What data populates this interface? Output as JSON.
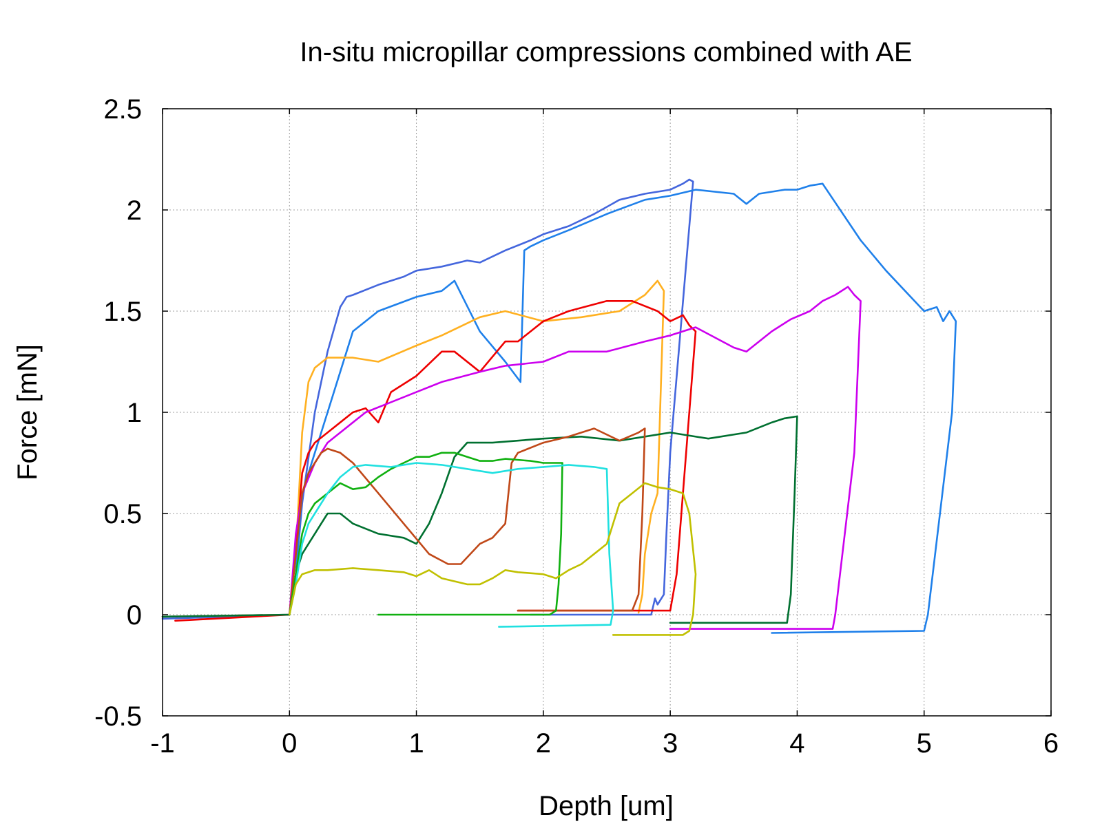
{
  "chart_data": {
    "type": "line",
    "title": "In-situ micropillar compressions combined with AE",
    "xlabel": "Depth [um]",
    "ylabel": "Force [mN]",
    "xlim": [
      -1,
      6
    ],
    "ylim": [
      -0.5,
      2.5
    ],
    "xticks": [
      -1,
      0,
      1,
      2,
      3,
      4,
      5,
      6
    ],
    "yticks": [
      -0.5,
      0,
      0.5,
      1,
      1.5,
      2,
      2.5
    ],
    "xtick_labels": [
      "-1",
      "0",
      "1",
      "2",
      "3",
      "4",
      "5",
      "6"
    ],
    "ytick_labels": [
      "-0.5",
      "0",
      "0.5",
      "1",
      "1.5",
      "2",
      "2.5"
    ],
    "grid": true,
    "series": [
      {
        "name": "royal-blue",
        "color": "#4466dd",
        "x": [
          -1,
          0,
          0.05,
          0.1,
          0.2,
          0.3,
          0.4,
          0.45,
          0.5,
          0.7,
          0.9,
          1.0,
          1.2,
          1.4,
          1.5,
          1.7,
          1.9,
          2.0,
          2.2,
          2.4,
          2.6,
          2.8,
          3.0,
          3.1,
          3.15,
          3.18,
          3.0,
          2.97,
          2.95,
          2.9,
          2.88,
          2.85,
          1.9
        ],
        "y": [
          -0.02,
          0.0,
          0.2,
          0.55,
          1.0,
          1.3,
          1.52,
          1.57,
          1.58,
          1.63,
          1.67,
          1.7,
          1.72,
          1.75,
          1.74,
          1.8,
          1.85,
          1.88,
          1.92,
          1.98,
          2.05,
          2.08,
          2.1,
          2.13,
          2.15,
          2.14,
          0.8,
          0.4,
          0.1,
          0.05,
          0.08,
          0.0,
          0.0
        ]
      },
      {
        "name": "azure",
        "color": "#1f80ea",
        "x": [
          -1,
          0,
          0.05,
          0.1,
          0.2,
          0.3,
          0.4,
          0.5,
          0.7,
          1.0,
          1.2,
          1.3,
          1.5,
          1.7,
          1.82,
          1.85,
          1.9,
          2.0,
          2.2,
          2.5,
          2.8,
          3.0,
          3.2,
          3.5,
          3.6,
          3.7,
          3.9,
          4.0,
          4.1,
          4.2,
          4.5,
          4.7,
          5.0,
          5.1,
          5.15,
          5.2,
          5.25,
          5.22,
          5.03,
          5.0,
          3.8
        ],
        "y": [
          -0.01,
          0.0,
          0.2,
          0.6,
          0.8,
          1.0,
          1.2,
          1.4,
          1.5,
          1.57,
          1.6,
          1.65,
          1.4,
          1.25,
          1.15,
          1.8,
          1.82,
          1.85,
          1.9,
          1.98,
          2.05,
          2.07,
          2.1,
          2.08,
          2.03,
          2.08,
          2.1,
          2.1,
          2.12,
          2.13,
          1.85,
          1.7,
          1.5,
          1.52,
          1.45,
          1.5,
          1.45,
          1.0,
          0.0,
          -0.08,
          -0.09
        ]
      },
      {
        "name": "orange",
        "color": "#ffb020",
        "x": [
          -1,
          0,
          0.05,
          0.1,
          0.15,
          0.2,
          0.3,
          0.5,
          0.7,
          1.0,
          1.2,
          1.5,
          1.7,
          2.0,
          2.3,
          2.6,
          2.8,
          2.9,
          2.95,
          2.93,
          2.9,
          2.85,
          2.8,
          2.78,
          2.75
        ],
        "y": [
          -0.01,
          0.0,
          0.3,
          0.9,
          1.15,
          1.22,
          1.27,
          1.27,
          1.25,
          1.33,
          1.38,
          1.47,
          1.5,
          1.45,
          1.47,
          1.5,
          1.58,
          1.65,
          1.6,
          1.2,
          0.6,
          0.5,
          0.3,
          0.1,
          0.01
        ]
      },
      {
        "name": "red",
        "color": "#ee0000",
        "x": [
          -0.9,
          0,
          0.05,
          0.1,
          0.15,
          0.2,
          0.3,
          0.4,
          0.5,
          0.6,
          0.7,
          0.8,
          1.0,
          1.2,
          1.3,
          1.5,
          1.7,
          1.8,
          2.0,
          2.2,
          2.5,
          2.7,
          2.9,
          3.0,
          3.1,
          3.15,
          3.2,
          3.1,
          3.05,
          3.0,
          2.8,
          1.8
        ],
        "y": [
          -0.03,
          0.0,
          0.3,
          0.7,
          0.8,
          0.85,
          0.9,
          0.95,
          1.0,
          1.02,
          0.95,
          1.1,
          1.18,
          1.3,
          1.3,
          1.2,
          1.35,
          1.35,
          1.45,
          1.5,
          1.55,
          1.55,
          1.5,
          1.45,
          1.48,
          1.43,
          1.4,
          0.6,
          0.2,
          0.02,
          0.02,
          0.02
        ]
      },
      {
        "name": "violet",
        "color": "#cc00ee",
        "x": [
          0,
          0.05,
          0.1,
          0.2,
          0.3,
          0.5,
          0.6,
          0.8,
          1.0,
          1.2,
          1.5,
          1.7,
          2.0,
          2.2,
          2.5,
          2.8,
          3.0,
          3.2,
          3.5,
          3.6,
          3.8,
          3.95,
          4.1,
          4.2,
          4.3,
          4.35,
          4.4,
          4.45,
          4.5,
          4.45,
          4.3,
          4.28,
          3.0
        ],
        "y": [
          0.0,
          0.4,
          0.6,
          0.75,
          0.85,
          0.95,
          1.0,
          1.05,
          1.1,
          1.15,
          1.2,
          1.23,
          1.25,
          1.3,
          1.3,
          1.35,
          1.38,
          1.42,
          1.32,
          1.3,
          1.4,
          1.46,
          1.5,
          1.55,
          1.58,
          1.6,
          1.62,
          1.58,
          1.55,
          0.8,
          0.0,
          -0.07,
          -0.07
        ]
      },
      {
        "name": "dark-green",
        "color": "#007030",
        "x": [
          -1,
          0,
          0.05,
          0.1,
          0.15,
          0.2,
          0.3,
          0.4,
          0.5,
          0.7,
          0.9,
          1.0,
          1.1,
          1.2,
          1.3,
          1.4,
          1.6,
          2.0,
          2.3,
          2.6,
          2.8,
          3.0,
          3.3,
          3.6,
          3.8,
          3.9,
          4.0,
          3.98,
          3.95,
          3.92,
          3.0
        ],
        "y": [
          -0.01,
          0.0,
          0.2,
          0.3,
          0.35,
          0.4,
          0.5,
          0.5,
          0.45,
          0.4,
          0.38,
          0.35,
          0.45,
          0.6,
          0.78,
          0.85,
          0.85,
          0.87,
          0.88,
          0.86,
          0.88,
          0.9,
          0.87,
          0.9,
          0.95,
          0.97,
          0.98,
          0.6,
          0.1,
          -0.04,
          -0.04
        ]
      },
      {
        "name": "brown",
        "color": "#c04818",
        "x": [
          0,
          0.05,
          0.1,
          0.15,
          0.2,
          0.25,
          0.3,
          0.4,
          0.5,
          0.7,
          0.9,
          1.1,
          1.25,
          1.35,
          1.5,
          1.6,
          1.7,
          1.75,
          1.8,
          2.0,
          2.2,
          2.4,
          2.6,
          2.75,
          2.8,
          2.78,
          2.75,
          2.7,
          1.8
        ],
        "y": [
          0.0,
          0.3,
          0.6,
          0.7,
          0.75,
          0.8,
          0.82,
          0.8,
          0.75,
          0.6,
          0.45,
          0.3,
          0.25,
          0.25,
          0.35,
          0.38,
          0.45,
          0.75,
          0.8,
          0.85,
          0.88,
          0.92,
          0.86,
          0.9,
          0.92,
          0.5,
          0.1,
          0.02,
          0.02
        ]
      },
      {
        "name": "green",
        "color": "#10b010",
        "x": [
          0,
          0.05,
          0.1,
          0.15,
          0.2,
          0.3,
          0.4,
          0.5,
          0.6,
          0.7,
          0.8,
          0.9,
          1.0,
          1.1,
          1.2,
          1.3,
          1.4,
          1.5,
          1.6,
          1.7,
          1.9,
          2.0,
          2.1,
          2.15,
          2.14,
          2.12,
          2.1,
          2.05,
          0.7
        ],
        "y": [
          0.0,
          0.2,
          0.4,
          0.5,
          0.55,
          0.6,
          0.65,
          0.62,
          0.63,
          0.68,
          0.72,
          0.75,
          0.78,
          0.78,
          0.8,
          0.8,
          0.78,
          0.76,
          0.76,
          0.77,
          0.76,
          0.75,
          0.75,
          0.75,
          0.4,
          0.15,
          0.02,
          0.0,
          0.0
        ]
      },
      {
        "name": "cyan",
        "color": "#20e0e0",
        "x": [
          0,
          0.05,
          0.1,
          0.15,
          0.2,
          0.3,
          0.4,
          0.5,
          0.6,
          0.8,
          1.0,
          1.2,
          1.4,
          1.6,
          1.8,
          2.0,
          2.2,
          2.4,
          2.5,
          2.52,
          2.55,
          2.53,
          1.65
        ],
        "y": [
          0.0,
          0.15,
          0.35,
          0.45,
          0.5,
          0.6,
          0.68,
          0.73,
          0.74,
          0.73,
          0.75,
          0.74,
          0.72,
          0.7,
          0.72,
          0.73,
          0.74,
          0.73,
          0.72,
          0.3,
          0.02,
          -0.05,
          -0.06
        ]
      },
      {
        "name": "olive",
        "color": "#c0c000",
        "x": [
          0,
          0.05,
          0.1,
          0.2,
          0.3,
          0.5,
          0.7,
          0.9,
          1.0,
          1.1,
          1.2,
          1.4,
          1.5,
          1.6,
          1.7,
          1.8,
          2.0,
          2.1,
          2.2,
          2.3,
          2.4,
          2.5,
          2.6,
          2.7,
          2.8,
          2.9,
          3.0,
          3.1,
          3.15,
          3.2,
          3.18,
          3.15,
          3.1,
          2.55
        ],
        "y": [
          0.0,
          0.15,
          0.2,
          0.22,
          0.22,
          0.23,
          0.22,
          0.21,
          0.19,
          0.22,
          0.18,
          0.15,
          0.15,
          0.18,
          0.22,
          0.21,
          0.2,
          0.18,
          0.22,
          0.25,
          0.3,
          0.35,
          0.55,
          0.6,
          0.65,
          0.63,
          0.62,
          0.6,
          0.5,
          0.2,
          0.0,
          -0.08,
          -0.1,
          -0.1
        ]
      }
    ]
  }
}
